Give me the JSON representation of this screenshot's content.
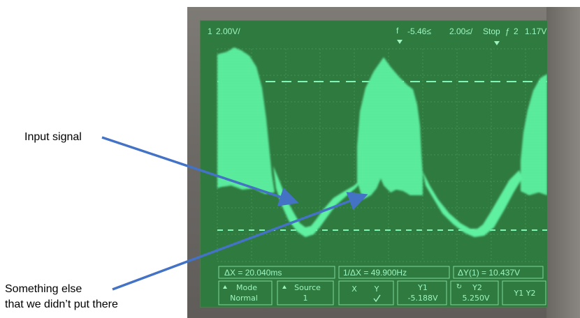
{
  "annotations": {
    "input_signal": "Input signal",
    "something_line1": "Something else",
    "something_line2": "that we didn’t put there"
  },
  "scope": {
    "channel": "1",
    "volts_per_div": "2.00V/",
    "trigger_level": "-5.46≤",
    "time_per_div": "2.00≤/",
    "run_state": "Stop",
    "trigger_channel": "2",
    "trigger_value": "1.17V",
    "delta_x": "ΔX = 20.040ms",
    "inv_delta_x": "1/ΔX = 49.900Hz",
    "delta_y": "ΔY(1) = 10.437V",
    "softkeys": {
      "mode_label": "Mode",
      "mode_value": "Normal",
      "source_label": "Source",
      "source_value": "1",
      "x_label": "X",
      "y_label": "Y",
      "y1_label": "Y1",
      "y1_value": "-5.188V",
      "y2_label": "Y2",
      "y2_value": "5.250V",
      "y1y2_label": "Y1 Y2"
    }
  },
  "colors": {
    "trace": "#5ef0a0",
    "screen": "#2f7a3f",
    "arrow": "#4472c4"
  }
}
